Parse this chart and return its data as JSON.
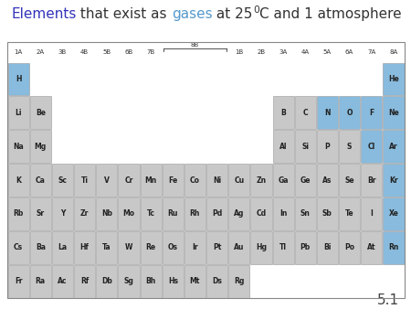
{
  "bg_color": "#ffffff",
  "cell_bg_normal": "#c8c8c8",
  "cell_bg_gas": "#88bbdd",
  "cell_border": "#999999",
  "footnote": "5.1",
  "title_fontsize": 11,
  "elem_fontsize": 5.5,
  "label_fontsize": 5.0,
  "elements": [
    {
      "symbol": "H",
      "row": 1,
      "col": 1,
      "gas": true
    },
    {
      "symbol": "He",
      "row": 1,
      "col": 18,
      "gas": true
    },
    {
      "symbol": "Li",
      "row": 2,
      "col": 1,
      "gas": false
    },
    {
      "symbol": "Be",
      "row": 2,
      "col": 2,
      "gas": false
    },
    {
      "symbol": "B",
      "row": 2,
      "col": 13,
      "gas": false
    },
    {
      "symbol": "C",
      "row": 2,
      "col": 14,
      "gas": false
    },
    {
      "symbol": "N",
      "row": 2,
      "col": 15,
      "gas": true
    },
    {
      "symbol": "O",
      "row": 2,
      "col": 16,
      "gas": true
    },
    {
      "symbol": "F",
      "row": 2,
      "col": 17,
      "gas": true
    },
    {
      "symbol": "Ne",
      "row": 2,
      "col": 18,
      "gas": true
    },
    {
      "symbol": "Na",
      "row": 3,
      "col": 1,
      "gas": false
    },
    {
      "symbol": "Mg",
      "row": 3,
      "col": 2,
      "gas": false
    },
    {
      "symbol": "Al",
      "row": 3,
      "col": 13,
      "gas": false
    },
    {
      "symbol": "Si",
      "row": 3,
      "col": 14,
      "gas": false
    },
    {
      "symbol": "P",
      "row": 3,
      "col": 15,
      "gas": false
    },
    {
      "symbol": "S",
      "row": 3,
      "col": 16,
      "gas": false
    },
    {
      "symbol": "Cl",
      "row": 3,
      "col": 17,
      "gas": true
    },
    {
      "symbol": "Ar",
      "row": 3,
      "col": 18,
      "gas": true
    },
    {
      "symbol": "K",
      "row": 4,
      "col": 1,
      "gas": false
    },
    {
      "symbol": "Ca",
      "row": 4,
      "col": 2,
      "gas": false
    },
    {
      "symbol": "Sc",
      "row": 4,
      "col": 3,
      "gas": false
    },
    {
      "symbol": "Ti",
      "row": 4,
      "col": 4,
      "gas": false
    },
    {
      "symbol": "V",
      "row": 4,
      "col": 5,
      "gas": false
    },
    {
      "symbol": "Cr",
      "row": 4,
      "col": 6,
      "gas": false
    },
    {
      "symbol": "Mn",
      "row": 4,
      "col": 7,
      "gas": false
    },
    {
      "symbol": "Fe",
      "row": 4,
      "col": 8,
      "gas": false
    },
    {
      "symbol": "Co",
      "row": 4,
      "col": 9,
      "gas": false
    },
    {
      "symbol": "Ni",
      "row": 4,
      "col": 10,
      "gas": false
    },
    {
      "symbol": "Cu",
      "row": 4,
      "col": 11,
      "gas": false
    },
    {
      "symbol": "Zn",
      "row": 4,
      "col": 12,
      "gas": false
    },
    {
      "symbol": "Ga",
      "row": 4,
      "col": 13,
      "gas": false
    },
    {
      "symbol": "Ge",
      "row": 4,
      "col": 14,
      "gas": false
    },
    {
      "symbol": "As",
      "row": 4,
      "col": 15,
      "gas": false
    },
    {
      "symbol": "Se",
      "row": 4,
      "col": 16,
      "gas": false
    },
    {
      "symbol": "Br",
      "row": 4,
      "col": 17,
      "gas": false
    },
    {
      "symbol": "Kr",
      "row": 4,
      "col": 18,
      "gas": true
    },
    {
      "symbol": "Rb",
      "row": 5,
      "col": 1,
      "gas": false
    },
    {
      "symbol": "Sr",
      "row": 5,
      "col": 2,
      "gas": false
    },
    {
      "symbol": "Y",
      "row": 5,
      "col": 3,
      "gas": false
    },
    {
      "symbol": "Zr",
      "row": 5,
      "col": 4,
      "gas": false
    },
    {
      "symbol": "Nb",
      "row": 5,
      "col": 5,
      "gas": false
    },
    {
      "symbol": "Mo",
      "row": 5,
      "col": 6,
      "gas": false
    },
    {
      "symbol": "Tc",
      "row": 5,
      "col": 7,
      "gas": false
    },
    {
      "symbol": "Ru",
      "row": 5,
      "col": 8,
      "gas": false
    },
    {
      "symbol": "Rh",
      "row": 5,
      "col": 9,
      "gas": false
    },
    {
      "symbol": "Pd",
      "row": 5,
      "col": 10,
      "gas": false
    },
    {
      "symbol": "Ag",
      "row": 5,
      "col": 11,
      "gas": false
    },
    {
      "symbol": "Cd",
      "row": 5,
      "col": 12,
      "gas": false
    },
    {
      "symbol": "In",
      "row": 5,
      "col": 13,
      "gas": false
    },
    {
      "symbol": "Sn",
      "row": 5,
      "col": 14,
      "gas": false
    },
    {
      "symbol": "Sb",
      "row": 5,
      "col": 15,
      "gas": false
    },
    {
      "symbol": "Te",
      "row": 5,
      "col": 16,
      "gas": false
    },
    {
      "symbol": "I",
      "row": 5,
      "col": 17,
      "gas": false
    },
    {
      "symbol": "Xe",
      "row": 5,
      "col": 18,
      "gas": true
    },
    {
      "symbol": "Cs",
      "row": 6,
      "col": 1,
      "gas": false
    },
    {
      "symbol": "Ba",
      "row": 6,
      "col": 2,
      "gas": false
    },
    {
      "symbol": "La",
      "row": 6,
      "col": 3,
      "gas": false
    },
    {
      "symbol": "Hf",
      "row": 6,
      "col": 4,
      "gas": false
    },
    {
      "symbol": "Ta",
      "row": 6,
      "col": 5,
      "gas": false
    },
    {
      "symbol": "W",
      "row": 6,
      "col": 6,
      "gas": false
    },
    {
      "symbol": "Re",
      "row": 6,
      "col": 7,
      "gas": false
    },
    {
      "symbol": "Os",
      "row": 6,
      "col": 8,
      "gas": false
    },
    {
      "symbol": "Ir",
      "row": 6,
      "col": 9,
      "gas": false
    },
    {
      "symbol": "Pt",
      "row": 6,
      "col": 10,
      "gas": false
    },
    {
      "symbol": "Au",
      "row": 6,
      "col": 11,
      "gas": false
    },
    {
      "symbol": "Hg",
      "row": 6,
      "col": 12,
      "gas": false
    },
    {
      "symbol": "Tl",
      "row": 6,
      "col": 13,
      "gas": false
    },
    {
      "symbol": "Pb",
      "row": 6,
      "col": 14,
      "gas": false
    },
    {
      "symbol": "Bi",
      "row": 6,
      "col": 15,
      "gas": false
    },
    {
      "symbol": "Po",
      "row": 6,
      "col": 16,
      "gas": false
    },
    {
      "symbol": "At",
      "row": 6,
      "col": 17,
      "gas": false
    },
    {
      "symbol": "Rn",
      "row": 6,
      "col": 18,
      "gas": true
    },
    {
      "symbol": "Fr",
      "row": 7,
      "col": 1,
      "gas": false
    },
    {
      "symbol": "Ra",
      "row": 7,
      "col": 2,
      "gas": false
    },
    {
      "symbol": "Ac",
      "row": 7,
      "col": 3,
      "gas": false
    },
    {
      "symbol": "Rf",
      "row": 7,
      "col": 4,
      "gas": false
    },
    {
      "symbol": "Db",
      "row": 7,
      "col": 5,
      "gas": false
    },
    {
      "symbol": "Sg",
      "row": 7,
      "col": 6,
      "gas": false
    },
    {
      "symbol": "Bh",
      "row": 7,
      "col": 7,
      "gas": false
    },
    {
      "symbol": "Hs",
      "row": 7,
      "col": 8,
      "gas": false
    },
    {
      "symbol": "Mt",
      "row": 7,
      "col": 9,
      "gas": false
    },
    {
      "symbol": "Ds",
      "row": 7,
      "col": 10,
      "gas": false
    },
    {
      "symbol": "Rg",
      "row": 7,
      "col": 11,
      "gas": false
    }
  ]
}
